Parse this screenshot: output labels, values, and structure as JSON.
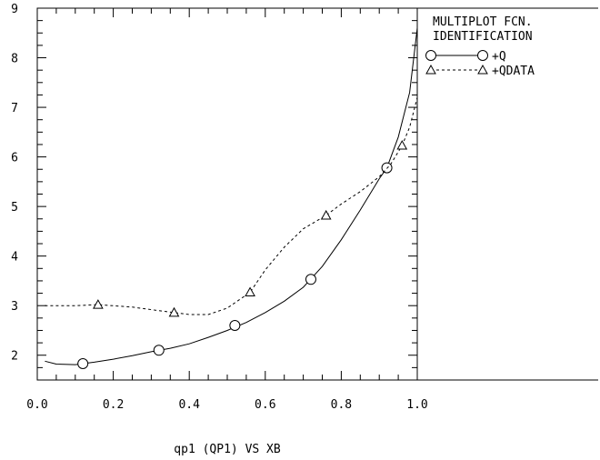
{
  "chart_data": {
    "type": "line",
    "title": "",
    "xlabel": "qp1 (QP1) VS XB",
    "ylabel": "",
    "xlim": [
      0.0,
      1.0
    ],
    "ylim": [
      1.5,
      9.0
    ],
    "x_ticks": [
      "0.0",
      "0.2",
      "0.4",
      "0.6",
      "0.8",
      "1.0"
    ],
    "y_ticks": [
      "2",
      "3",
      "4",
      "5",
      "6",
      "7",
      "8",
      "9"
    ],
    "legend": {
      "title_line1": "MULTIPLOT FCN.",
      "title_line2": "IDENTIFICATION",
      "placement": "right"
    },
    "series": [
      {
        "name": "+Q",
        "line": "solid",
        "marker": "circle",
        "color": "#000000",
        "x": [
          0.02,
          0.05,
          0.1,
          0.15,
          0.2,
          0.25,
          0.3,
          0.35,
          0.4,
          0.45,
          0.5,
          0.55,
          0.6,
          0.65,
          0.7,
          0.75,
          0.8,
          0.85,
          0.9,
          0.92,
          0.95,
          0.98,
          1.0
        ],
        "y": [
          1.88,
          1.82,
          1.81,
          1.86,
          1.92,
          1.99,
          2.07,
          2.14,
          2.23,
          2.36,
          2.5,
          2.66,
          2.86,
          3.09,
          3.37,
          3.79,
          4.33,
          4.93,
          5.56,
          5.78,
          6.4,
          7.3,
          8.6
        ],
        "marker_x": [
          0.12,
          0.32,
          0.52,
          0.72,
          0.92
        ],
        "marker_y": [
          1.83,
          2.1,
          2.6,
          3.53,
          5.78
        ]
      },
      {
        "name": "+QDATA",
        "line": "dashed",
        "marker": "triangle",
        "color": "#000000",
        "x": [
          0.02,
          0.1,
          0.16,
          0.25,
          0.3,
          0.36,
          0.4,
          0.45,
          0.5,
          0.56,
          0.6,
          0.65,
          0.7,
          0.76,
          0.8,
          0.85,
          0.9,
          0.93,
          0.96,
          0.98,
          1.0
        ],
        "y": [
          3.0,
          3.0,
          3.02,
          2.97,
          2.92,
          2.86,
          2.82,
          2.82,
          2.95,
          3.27,
          3.72,
          4.18,
          4.55,
          4.82,
          5.05,
          5.3,
          5.6,
          5.85,
          6.23,
          6.6,
          7.2
        ],
        "marker_x": [
          0.16,
          0.36,
          0.56,
          0.76,
          0.96
        ],
        "marker_y": [
          3.02,
          2.86,
          3.27,
          4.82,
          6.23
        ]
      }
    ]
  }
}
